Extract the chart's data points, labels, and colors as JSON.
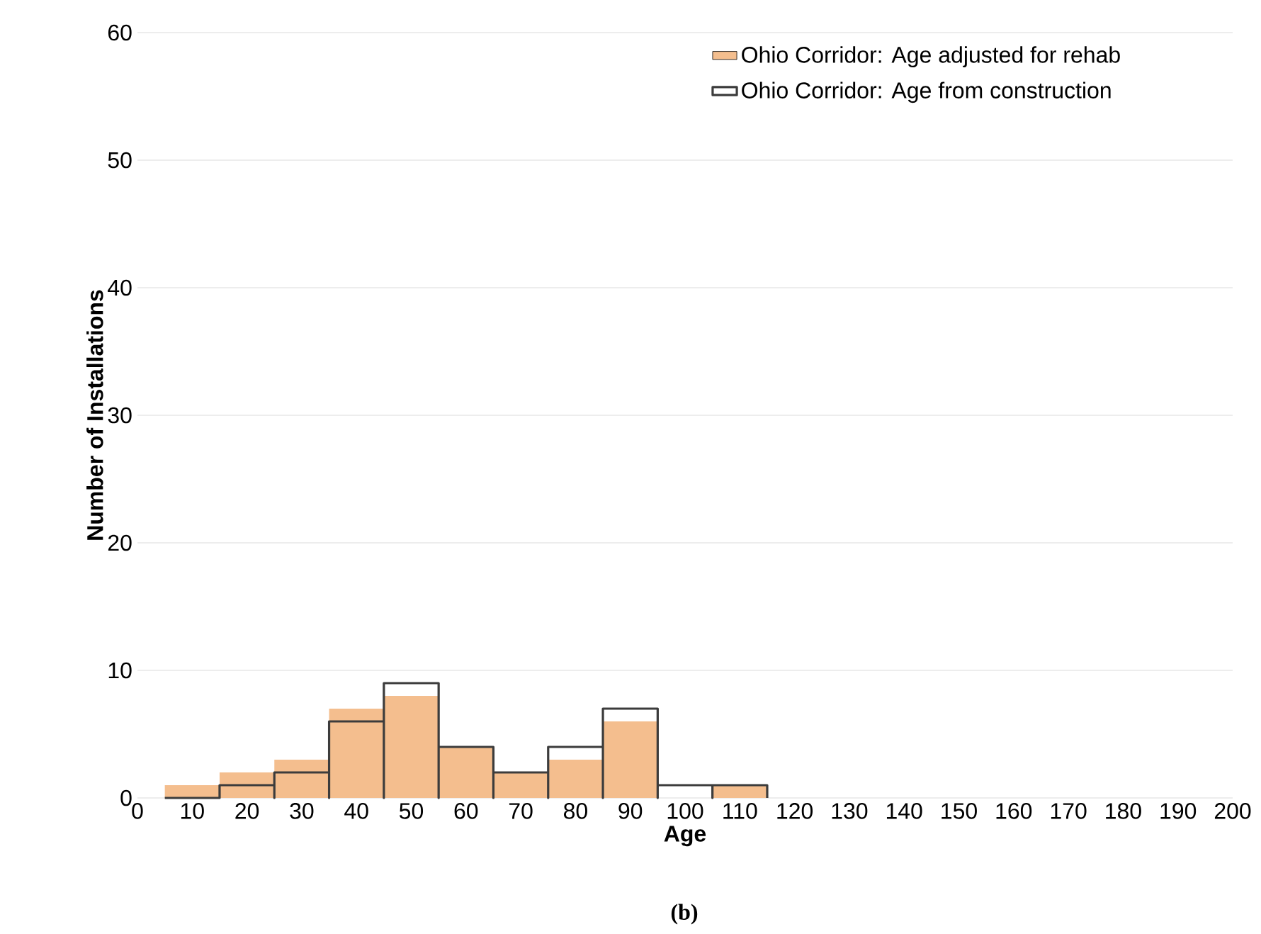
{
  "chart_data": {
    "type": "histogram",
    "xlabel": "Age",
    "ylabel": "Number of Installations",
    "bins": [
      5,
      15,
      25,
      35,
      45,
      55,
      65,
      75,
      85,
      95,
      105,
      115
    ],
    "series": [
      {
        "name": "Ohio Corridor: Age adjusted for rehab",
        "color": "#f4be8e",
        "values": [
          1,
          2,
          3,
          7,
          8,
          4,
          2,
          3,
          6,
          0,
          1
        ]
      },
      {
        "name": "Ohio Corridor: Age from construction",
        "color": "#3c3c3c",
        "values": [
          0,
          1,
          2,
          6,
          9,
          4,
          2,
          4,
          7,
          1,
          1
        ]
      }
    ],
    "xlim": [
      0,
      200
    ],
    "xticks": [
      0,
      10,
      20,
      30,
      40,
      50,
      60,
      70,
      80,
      90,
      100,
      110,
      120,
      130,
      140,
      150,
      160,
      170,
      180,
      190,
      200
    ],
    "ylim": [
      0,
      60
    ],
    "yticks": [
      0,
      10,
      20,
      30,
      40,
      50,
      60
    ],
    "grid": "y",
    "legend": "top",
    "annotations": [
      "(b)"
    ]
  }
}
